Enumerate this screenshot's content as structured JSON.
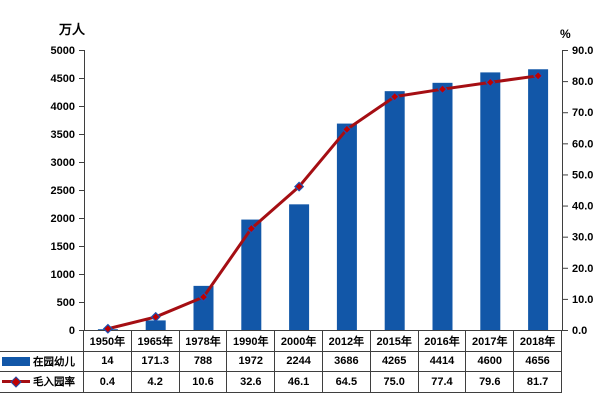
{
  "chart_data": {
    "type": "bar+line",
    "categories": [
      "1950年",
      "1965年",
      "1978年",
      "1990年",
      "2000年",
      "2012年",
      "2015年",
      "2016年",
      "2017年",
      "2018年"
    ],
    "series": [
      {
        "name": "在园幼儿",
        "chart": "bar",
        "axis": "left",
        "color": "#1257A8",
        "values": [
          14,
          171.3,
          788,
          1972,
          2244,
          3686,
          4265,
          4414,
          4600,
          4656
        ],
        "labels": [
          "14",
          "171.3",
          "788",
          "1972",
          "2244",
          "3686",
          "4265",
          "4414",
          "4600",
          "4656"
        ]
      },
      {
        "name": "毛入园率",
        "chart": "line",
        "axis": "right",
        "color": "#A50E13",
        "marker_shape": "diamond",
        "marker_fill": "#C00000",
        "marker_stroke": "#1C52B0",
        "values": [
          0.4,
          4.2,
          10.6,
          32.6,
          46.1,
          64.5,
          75.0,
          77.4,
          79.6,
          81.7
        ],
        "labels": [
          "0.4",
          "4.2",
          "10.6",
          "32.6",
          "46.1",
          "64.5",
          "75.0",
          "77.4",
          "79.6",
          "81.7"
        ]
      }
    ],
    "left_axis": {
      "unit": "万人",
      "min": 0,
      "max": 5000,
      "step": 500,
      "tick_labels": [
        "0",
        "500",
        "1000",
        "1500",
        "2000",
        "2500",
        "3000",
        "3500",
        "4000",
        "4500",
        "5000"
      ]
    },
    "right_axis": {
      "unit": "%",
      "min": 0,
      "max": 90,
      "step": 10,
      "tick_labels": [
        "0.0",
        "10.0",
        "20.0",
        "30.0",
        "40.0",
        "50.0",
        "60.0",
        "70.0",
        "80.0",
        "90.0"
      ]
    },
    "grid": false,
    "legend_position": "table-rows-left"
  },
  "colors": {
    "bar": "#1257A8",
    "line": "#A50E13",
    "marker_fill": "#C00000",
    "marker_stroke": "#1C52B0",
    "axis": "#3f3f3f",
    "text": "#000000",
    "background": "#FFFFFF"
  }
}
